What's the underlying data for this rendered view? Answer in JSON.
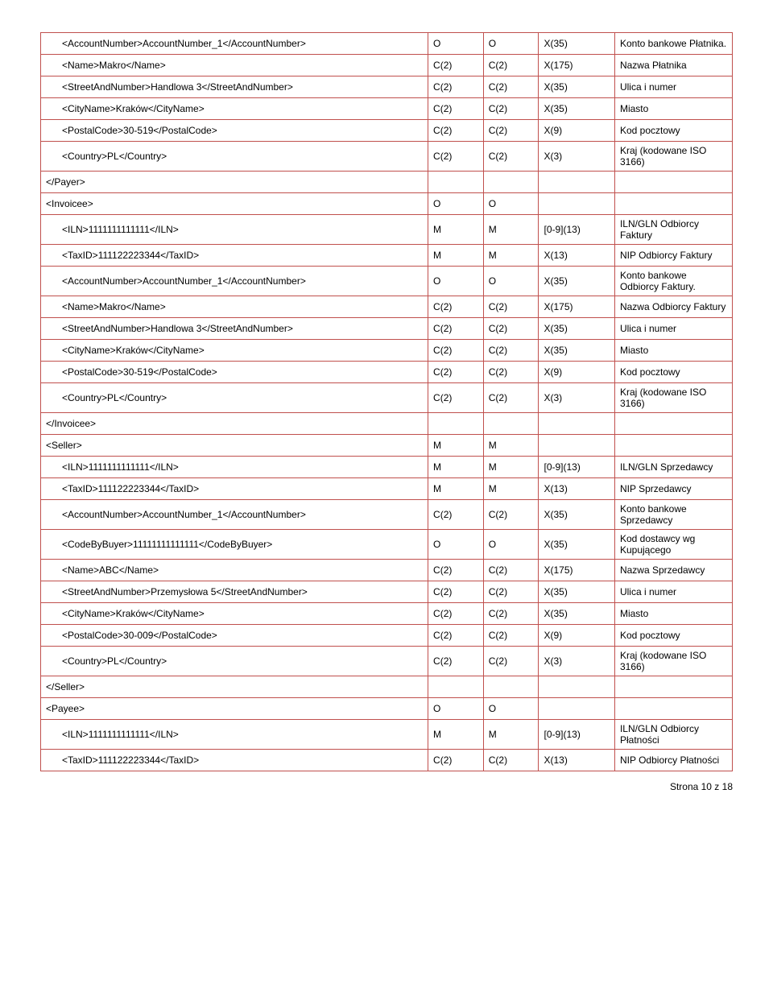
{
  "rows": [
    {
      "c1": "<AccountNumber>AccountNumber_1</AccountNumber>",
      "indent": 1,
      "c2": "O",
      "c3": "O",
      "c4": "X(35)",
      "c5": "Konto bankowe Płatnika."
    },
    {
      "c1": "<Name>Makro</Name>",
      "indent": 1,
      "c2": "C(2)",
      "c3": "C(2)",
      "c4": "X(175)",
      "c5": "Nazwa Płatnika"
    },
    {
      "c1": "<StreetAndNumber>Handlowa 3</StreetAndNumber>",
      "indent": 1,
      "c2": "C(2)",
      "c3": "C(2)",
      "c4": "X(35)",
      "c5": "Ulica i numer"
    },
    {
      "c1": "<CityName>Kraków</CityName>",
      "indent": 1,
      "c2": "C(2)",
      "c3": "C(2)",
      "c4": "X(35)",
      "c5": "Miasto"
    },
    {
      "c1": "<PostalCode>30-519</PostalCode>",
      "indent": 1,
      "c2": "C(2)",
      "c3": "C(2)",
      "c4": "X(9)",
      "c5": "Kod pocztowy"
    },
    {
      "c1": "<Country>PL</Country>",
      "indent": 1,
      "c2": "C(2)",
      "c3": "C(2)",
      "c4": "X(3)",
      "c5": "Kraj (kodowane ISO 3166)"
    },
    {
      "c1": "</Payer>",
      "indent": 0,
      "c2": "",
      "c3": "",
      "c4": "",
      "c5": ""
    },
    {
      "c1": "<Invoicee>",
      "indent": 0,
      "c2": "O",
      "c3": "O",
      "c4": "",
      "c5": ""
    },
    {
      "c1": "<ILN>1111111111111</ILN>",
      "indent": 1,
      "c2": "M",
      "c3": "M",
      "c4": "[0-9](13)",
      "c5": "ILN/GLN Odbiorcy Faktury"
    },
    {
      "c1": "<TaxID>111122223344</TaxID>",
      "indent": 1,
      "c2": "M",
      "c3": "M",
      "c4": "X(13)",
      "c5": "NIP Odbiorcy Faktury"
    },
    {
      "c1": "<AccountNumber>AccountNumber_1</AccountNumber>",
      "indent": 1,
      "c2": "O",
      "c3": "O",
      "c4": "X(35)",
      "c5": "Konto bankowe Odbiorcy Faktury."
    },
    {
      "c1": "<Name>Makro</Name>",
      "indent": 1,
      "c2": "C(2)",
      "c3": "C(2)",
      "c4": "X(175)",
      "c5": "Nazwa Odbiorcy Faktury"
    },
    {
      "c1": "<StreetAndNumber>Handlowa 3</StreetAndNumber>",
      "indent": 1,
      "c2": "C(2)",
      "c3": "C(2)",
      "c4": "X(35)",
      "c5": "Ulica i numer"
    },
    {
      "c1": "<CityName>Kraków</CityName>",
      "indent": 1,
      "c2": "C(2)",
      "c3": "C(2)",
      "c4": "X(35)",
      "c5": "Miasto"
    },
    {
      "c1": "<PostalCode>30-519</PostalCode>",
      "indent": 1,
      "c2": "C(2)",
      "c3": "C(2)",
      "c4": "X(9)",
      "c5": "Kod pocztowy"
    },
    {
      "c1": "<Country>PL</Country>",
      "indent": 1,
      "c2": "C(2)",
      "c3": "C(2)",
      "c4": "X(3)",
      "c5": "Kraj (kodowane ISO 3166)"
    },
    {
      "c1": "</Invoicee>",
      "indent": 0,
      "c2": "",
      "c3": "",
      "c4": "",
      "c5": ""
    },
    {
      "c1": "<Seller>",
      "indent": 0,
      "c2": "M",
      "c3": "M",
      "c4": "",
      "c5": ""
    },
    {
      "c1": "<ILN>1111111111111</ILN>",
      "indent": 1,
      "c2": "M",
      "c3": "M",
      "c4": "[0-9](13)",
      "c5": "ILN/GLN Sprzedawcy"
    },
    {
      "c1": "<TaxID>111122223344</TaxID>",
      "indent": 1,
      "c2": "M",
      "c3": "M",
      "c4": "X(13)",
      "c5": "NIP Sprzedawcy"
    },
    {
      "c1": "<AccountNumber>AccountNumber_1</AccountNumber>",
      "indent": 1,
      "c2": "C(2)",
      "c3": "C(2)",
      "c4": "X(35)",
      "c5": "Konto bankowe Sprzedawcy"
    },
    {
      "c1": "<CodeByBuyer>11111111111111</CodeByBuyer>",
      "indent": 1,
      "c2": "O",
      "c3": "O",
      "c4": "X(35)",
      "c5": "Kod dostawcy wg Kupującego"
    },
    {
      "c1": "<Name>ABC</Name>",
      "indent": 1,
      "c2": "C(2)",
      "c3": "C(2)",
      "c4": "X(175)",
      "c5": "Nazwa Sprzedawcy"
    },
    {
      "c1": "<StreetAndNumber>Przemysłowa 5</StreetAndNumber>",
      "indent": 1,
      "c2": "C(2)",
      "c3": "C(2)",
      "c4": "X(35)",
      "c5": "Ulica i numer"
    },
    {
      "c1": "<CityName>Kraków</CityName>",
      "indent": 1,
      "c2": "C(2)",
      "c3": "C(2)",
      "c4": "X(35)",
      "c5": "Miasto"
    },
    {
      "c1": "<PostalCode>30-009</PostalCode>",
      "indent": 1,
      "c2": "C(2)",
      "c3": "C(2)",
      "c4": "X(9)",
      "c5": "Kod pocztowy"
    },
    {
      "c1": "<Country>PL</Country>",
      "indent": 1,
      "c2": "C(2)",
      "c3": "C(2)",
      "c4": "X(3)",
      "c5": "Kraj (kodowane ISO 3166)"
    },
    {
      "c1": "</Seller>",
      "indent": 0,
      "c2": "",
      "c3": "",
      "c4": "",
      "c5": ""
    },
    {
      "c1": "<Payee>",
      "indent": 0,
      "c2": "O",
      "c3": "O",
      "c4": "",
      "c5": ""
    },
    {
      "c1": "<ILN>1111111111111</ILN>",
      "indent": 1,
      "c2": "M",
      "c3": "M",
      "c4": "[0-9](13)",
      "c5": "ILN/GLN Odbiorcy Płatności"
    },
    {
      "c1": "<TaxID>111122223344</TaxID>",
      "indent": 1,
      "c2": "C(2)",
      "c3": "C(2)",
      "c4": "X(13)",
      "c5": "NIP Odbiorcy Płatności"
    }
  ],
  "footer": "Strona 10 z 18"
}
